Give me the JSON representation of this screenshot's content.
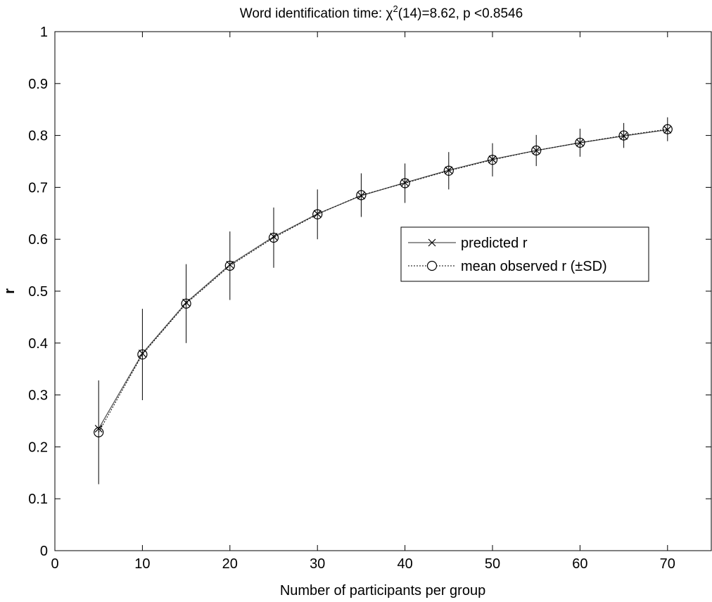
{
  "chart_data": {
    "type": "line",
    "title": {
      "prefix": "Word identification time: ",
      "symbol": "χ",
      "superscript": "2",
      "suffix": "(14)=8.62, p <0.8546"
    },
    "xlabel": "Number of participants per group",
    "ylabel": "r",
    "xlim": [
      0,
      75
    ],
    "ylim": [
      0,
      1
    ],
    "xticks": [
      0,
      10,
      20,
      30,
      40,
      50,
      60,
      70
    ],
    "yticks": [
      0,
      0.1,
      0.2,
      0.3,
      0.4,
      0.5,
      0.6,
      0.7,
      0.8,
      0.9,
      1
    ],
    "grid": false,
    "legend_position": "center-right",
    "x": [
      5,
      10,
      15,
      20,
      25,
      30,
      35,
      40,
      45,
      50,
      55,
      60,
      65,
      70
    ],
    "series": [
      {
        "name": "predicted r",
        "marker": "x",
        "line": "solid",
        "values": [
          0.235,
          0.38,
          0.478,
          0.551,
          0.605,
          0.649,
          0.684,
          0.709,
          0.733,
          0.754,
          0.771,
          0.786,
          0.799,
          0.811
        ]
      },
      {
        "name": "mean observed r (±SD)",
        "marker": "o",
        "line": "dotted",
        "values": [
          0.228,
          0.378,
          0.476,
          0.549,
          0.603,
          0.648,
          0.685,
          0.708,
          0.732,
          0.753,
          0.771,
          0.786,
          0.8,
          0.812
        ],
        "sd": [
          0.1,
          0.088,
          0.076,
          0.066,
          0.058,
          0.048,
          0.042,
          0.038,
          0.036,
          0.032,
          0.03,
          0.027,
          0.024,
          0.023
        ]
      }
    ],
    "colors": {
      "line": "#555555",
      "axis": "#000000",
      "background": "#ffffff"
    }
  }
}
